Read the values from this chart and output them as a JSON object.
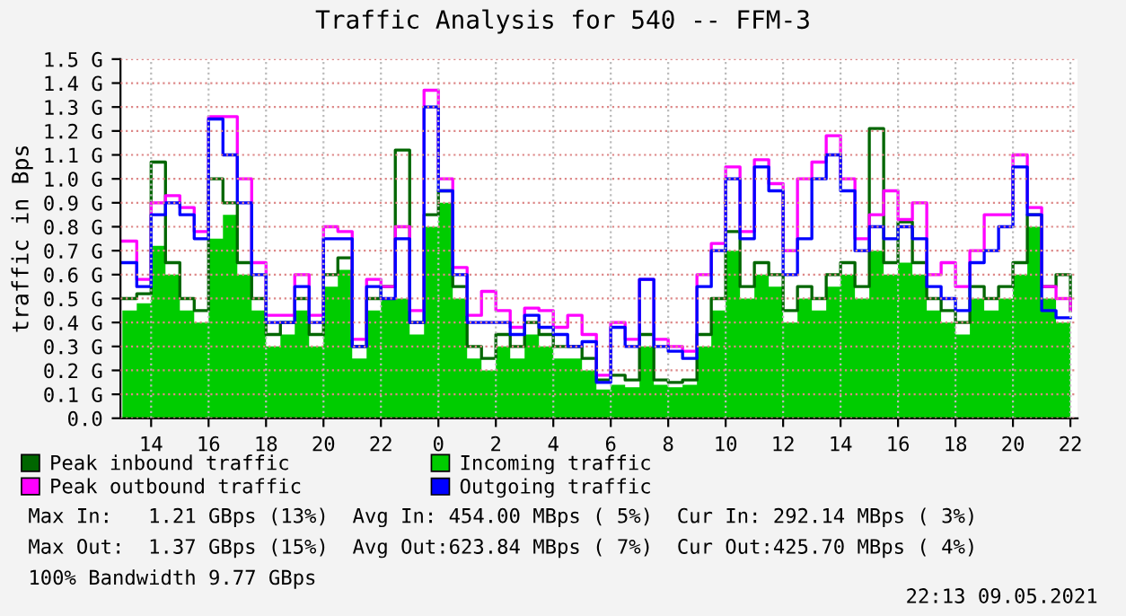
{
  "chart_data": {
    "type": "step",
    "title": "Traffic Analysis for 540 -- FFM-3",
    "ylabel": "traffic in Bps",
    "x": [
      "2021-05-08T13:00",
      "2021-05-08T13:30",
      "2021-05-08T14:00",
      "2021-05-08T14:30",
      "2021-05-08T15:00",
      "2021-05-08T15:30",
      "2021-05-08T16:00",
      "2021-05-08T16:30",
      "2021-05-08T17:00",
      "2021-05-08T17:30",
      "2021-05-08T18:00",
      "2021-05-08T18:30",
      "2021-05-08T19:00",
      "2021-05-08T19:30",
      "2021-05-08T20:00",
      "2021-05-08T20:30",
      "2021-05-08T21:00",
      "2021-05-08T21:30",
      "2021-05-08T22:00",
      "2021-05-08T22:30",
      "2021-05-08T23:00",
      "2021-05-08T23:30",
      "2021-05-09T00:00",
      "2021-05-09T00:30",
      "2021-05-09T01:00",
      "2021-05-09T01:30",
      "2021-05-09T02:00",
      "2021-05-09T02:30",
      "2021-05-09T03:00",
      "2021-05-09T03:30",
      "2021-05-09T04:00",
      "2021-05-09T04:30",
      "2021-05-09T05:00",
      "2021-05-09T05:30",
      "2021-05-09T06:00",
      "2021-05-09T06:30",
      "2021-05-09T07:00",
      "2021-05-09T07:30",
      "2021-05-09T08:00",
      "2021-05-09T08:30",
      "2021-05-09T09:00",
      "2021-05-09T09:30",
      "2021-05-09T10:00",
      "2021-05-09T10:30",
      "2021-05-09T11:00",
      "2021-05-09T11:30",
      "2021-05-09T12:00",
      "2021-05-09T12:30",
      "2021-05-09T13:00",
      "2021-05-09T13:30",
      "2021-05-09T14:00",
      "2021-05-09T14:30",
      "2021-05-09T15:00",
      "2021-05-09T15:30",
      "2021-05-09T16:00",
      "2021-05-09T16:30",
      "2021-05-09T17:00",
      "2021-05-09T17:30",
      "2021-05-09T18:00",
      "2021-05-09T18:30",
      "2021-05-09T19:00",
      "2021-05-09T19:30",
      "2021-05-09T20:00",
      "2021-05-09T20:30",
      "2021-05-09T21:00",
      "2021-05-09T21:30",
      "2021-05-09T22:00"
    ],
    "series": [
      {
        "name": "Peak inbound traffic",
        "color": "#006600",
        "values": [
          0.5,
          0.52,
          1.07,
          0.65,
          0.5,
          0.45,
          1.0,
          0.9,
          0.65,
          0.5,
          0.35,
          0.4,
          0.5,
          0.35,
          0.6,
          0.67,
          0.3,
          0.5,
          0.55,
          1.12,
          0.4,
          0.85,
          0.95,
          0.55,
          0.3,
          0.25,
          0.35,
          0.3,
          0.4,
          0.35,
          0.3,
          0.3,
          0.25,
          0.16,
          0.18,
          0.16,
          0.35,
          0.16,
          0.15,
          0.16,
          0.35,
          0.5,
          0.78,
          0.55,
          0.65,
          0.6,
          0.45,
          0.55,
          0.5,
          0.6,
          0.65,
          0.55,
          1.21,
          0.65,
          0.82,
          0.65,
          0.5,
          0.45,
          0.4,
          0.55,
          0.5,
          0.55,
          0.65,
          0.85,
          0.55,
          0.6,
          0.45
        ]
      },
      {
        "name": "Incoming traffic",
        "type": "area",
        "color": "#00cc00",
        "values": [
          0.45,
          0.48,
          0.72,
          0.6,
          0.45,
          0.4,
          0.75,
          0.85,
          0.6,
          0.45,
          0.3,
          0.35,
          0.45,
          0.3,
          0.55,
          0.62,
          0.25,
          0.45,
          0.5,
          0.5,
          0.35,
          0.8,
          0.9,
          0.5,
          0.25,
          0.2,
          0.3,
          0.25,
          0.35,
          0.3,
          0.25,
          0.25,
          0.2,
          0.12,
          0.14,
          0.13,
          0.3,
          0.14,
          0.13,
          0.14,
          0.3,
          0.45,
          0.7,
          0.5,
          0.6,
          0.55,
          0.4,
          0.5,
          0.45,
          0.55,
          0.6,
          0.5,
          0.7,
          0.6,
          0.65,
          0.6,
          0.45,
          0.4,
          0.35,
          0.5,
          0.45,
          0.5,
          0.6,
          0.8,
          0.5,
          0.4,
          0.4
        ]
      },
      {
        "name": "Peak outbound traffic",
        "color": "#ff00ff",
        "values": [
          0.74,
          0.58,
          0.9,
          0.93,
          0.88,
          0.78,
          1.26,
          1.26,
          1.0,
          0.65,
          0.43,
          0.43,
          0.6,
          0.43,
          0.8,
          0.78,
          0.33,
          0.58,
          0.55,
          0.8,
          0.45,
          1.37,
          1.0,
          0.63,
          0.43,
          0.53,
          0.45,
          0.38,
          0.46,
          0.45,
          0.38,
          0.43,
          0.35,
          0.18,
          0.4,
          0.33,
          0.58,
          0.33,
          0.3,
          0.28,
          0.6,
          0.73,
          1.05,
          0.78,
          1.08,
          0.98,
          0.7,
          1.0,
          1.07,
          1.18,
          1.0,
          0.75,
          0.85,
          0.95,
          0.83,
          0.9,
          0.6,
          0.65,
          0.55,
          0.7,
          0.85,
          0.85,
          1.1,
          0.88,
          0.55,
          0.5,
          0.45
        ]
      },
      {
        "name": "Outgoing traffic",
        "color": "#0000ff",
        "values": [
          0.65,
          0.55,
          0.85,
          0.9,
          0.85,
          0.75,
          1.25,
          1.1,
          0.9,
          0.6,
          0.4,
          0.4,
          0.55,
          0.4,
          0.75,
          0.75,
          0.3,
          0.55,
          0.5,
          0.75,
          0.4,
          1.3,
          0.95,
          0.6,
          0.4,
          0.4,
          0.4,
          0.35,
          0.43,
          0.38,
          0.35,
          0.3,
          0.32,
          0.15,
          0.38,
          0.3,
          0.58,
          0.3,
          0.28,
          0.25,
          0.55,
          0.7,
          1.0,
          0.75,
          1.05,
          0.95,
          0.6,
          0.75,
          1.0,
          1.1,
          0.95,
          0.7,
          0.8,
          0.75,
          0.8,
          0.75,
          0.55,
          0.5,
          0.45,
          0.65,
          0.7,
          0.8,
          1.05,
          0.85,
          0.45,
          0.42,
          0.42
        ]
      }
    ],
    "xlim": [
      "2021-05-08T12:56",
      "2021-05-09T22:15"
    ],
    "xticks": [
      {
        "value": "2021-05-08T14:00",
        "label": "14"
      },
      {
        "value": "2021-05-08T16:00",
        "label": "16"
      },
      {
        "value": "2021-05-08T18:00",
        "label": "18"
      },
      {
        "value": "2021-05-08T20:00",
        "label": "20"
      },
      {
        "value": "2021-05-08T22:00",
        "label": "22"
      },
      {
        "value": "2021-05-09T00:00",
        "label": "0"
      },
      {
        "value": "2021-05-09T02:00",
        "label": "2"
      },
      {
        "value": "2021-05-09T04:00",
        "label": "4"
      },
      {
        "value": "2021-05-09T06:00",
        "label": "6"
      },
      {
        "value": "2021-05-09T08:00",
        "label": "8"
      },
      {
        "value": "2021-05-09T10:00",
        "label": "10"
      },
      {
        "value": "2021-05-09T12:00",
        "label": "12"
      },
      {
        "value": "2021-05-09T14:00",
        "label": "14"
      },
      {
        "value": "2021-05-09T16:00",
        "label": "16"
      },
      {
        "value": "2021-05-09T18:00",
        "label": "18"
      },
      {
        "value": "2021-05-09T20:00",
        "label": "20"
      },
      {
        "value": "2021-05-09T22:00",
        "label": "22"
      }
    ],
    "ylim": [
      0,
      1.5
    ],
    "yticks": [
      {
        "value": 0,
        "label": "0.0"
      },
      {
        "value": 0.1,
        "label": "0.1 G"
      },
      {
        "value": 0.2,
        "label": "0.2 G"
      },
      {
        "value": 0.3,
        "label": "0.3 G"
      },
      {
        "value": 0.4,
        "label": "0.4 G"
      },
      {
        "value": 0.5,
        "label": "0.5 G"
      },
      {
        "value": 0.6,
        "label": "0.6 G"
      },
      {
        "value": 0.7,
        "label": "0.7 G"
      },
      {
        "value": 0.8,
        "label": "0.8 G"
      },
      {
        "value": 0.9,
        "label": "0.9 G"
      },
      {
        "value": 1.0,
        "label": "1.0 G"
      },
      {
        "value": 1.1,
        "label": "1.1 G"
      },
      {
        "value": 1.2,
        "label": "1.2 G"
      },
      {
        "value": 1.3,
        "label": "1.3 G"
      },
      {
        "value": 1.4,
        "label": "1.4 G"
      },
      {
        "value": 1.5,
        "label": "1.5 G"
      }
    ],
    "grid": true,
    "legend": "bottom",
    "annotations": [
      "Max In:   1.21 GBps (13%)  Avg In: 454.00 MBps ( 5%)  Cur In: 292.14 MBps ( 3%)",
      "Max Out:  1.37 GBps (15%)  Avg Out:623.84 MBps ( 7%)  Cur Out:425.70 MBps ( 4%)",
      "100% Bandwidth 9.77 GBps",
      "22:13 09.05.2021"
    ]
  }
}
